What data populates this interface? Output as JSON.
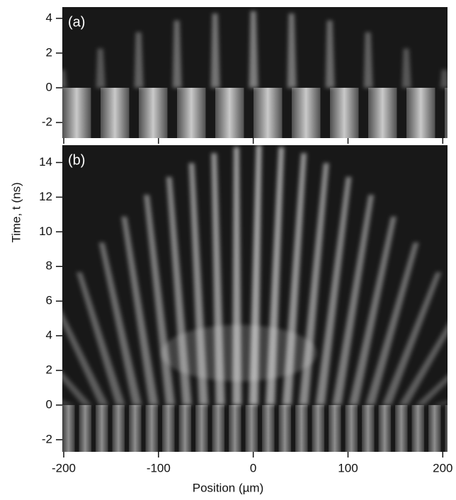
{
  "figure": {
    "panels": [
      {
        "label": "(a)",
        "ylim": [
          -2.9,
          4.65
        ],
        "yticks": [
          -2,
          0,
          2,
          4
        ]
      },
      {
        "label": "(b)",
        "ylim": [
          -2.7,
          15
        ],
        "yticks": [
          -2,
          0,
          2,
          4,
          6,
          8,
          10,
          12,
          14
        ]
      }
    ],
    "xlim": [
      -201.5,
      205
    ],
    "xticks": [
      -200,
      -100,
      0,
      100,
      200
    ],
    "xlabel": "Position (µm)",
    "ylabel": "Time, t  (ns)"
  }
}
